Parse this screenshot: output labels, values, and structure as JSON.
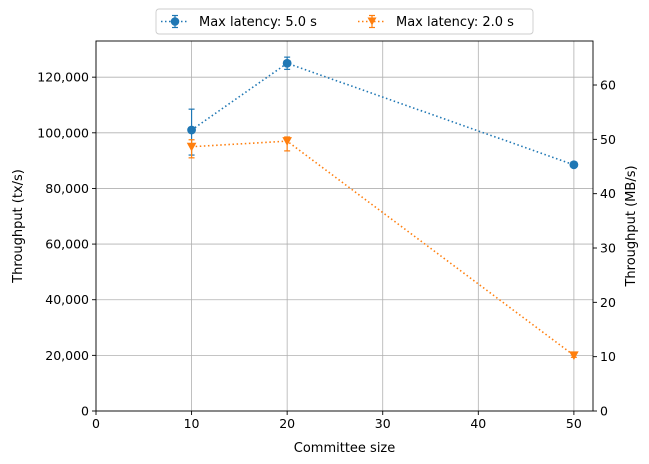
{
  "chart_data": {
    "type": "line",
    "xlabel": "Committee size",
    "ylabel": "Throughput (tx/s)",
    "ylabel_right": "Throughput (MB/s)",
    "xlim": [
      0,
      52
    ],
    "ylim": [
      0,
      133000
    ],
    "ylim_right": [
      0,
      68.1
    ],
    "x_ticks": [
      0,
      10,
      20,
      30,
      40,
      50
    ],
    "x_tick_labels": [
      "0",
      "10",
      "20",
      "30",
      "40",
      "50"
    ],
    "y_ticks": [
      0,
      20000,
      40000,
      60000,
      80000,
      100000,
      120000
    ],
    "y_tick_labels": [
      "0",
      "20,000",
      "40,000",
      "60,000",
      "80,000",
      "100,000",
      "120,000"
    ],
    "y_ticks_right": [
      0,
      10,
      20,
      30,
      40,
      50,
      60
    ],
    "y_tick_labels_right": [
      "0",
      "10",
      "20",
      "30",
      "40",
      "50",
      "60"
    ],
    "grid": true,
    "legend_position": "top-center",
    "series": [
      {
        "name": "Max latency: 5.0 s",
        "color": "#1f77b4",
        "marker": "circle",
        "linestyle": "dotted",
        "x": [
          10,
          20,
          50
        ],
        "y": [
          101000,
          125000,
          88500
        ],
        "err_low": [
          9000,
          2200,
          900
        ],
        "err_high": [
          7500,
          2200,
          1000
        ]
      },
      {
        "name": "Max latency: 2.0 s",
        "color": "#ff7f0e",
        "marker": "triangle-down",
        "linestyle": "dotted",
        "x": [
          10,
          20,
          50
        ],
        "y": [
          95000,
          97000,
          20000
        ],
        "err_low": [
          4000,
          3500,
          700
        ],
        "err_high": [
          2500,
          1500,
          700
        ]
      }
    ]
  }
}
